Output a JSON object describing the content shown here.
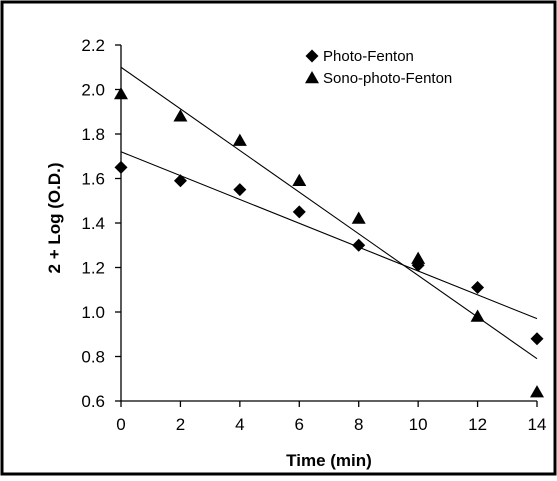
{
  "chart_data": {
    "type": "scatter",
    "title": "",
    "xlabel": "Time (min)",
    "ylabel": "2 + Log (O.D.)",
    "xlim": [
      0,
      14
    ],
    "ylim": [
      0.6,
      2.2
    ],
    "x_ticks": [
      "0",
      "2",
      "4",
      "6",
      "8",
      "10",
      "12",
      "14"
    ],
    "y_ticks": [
      "0.6",
      "0.8",
      "1.0",
      "1.2",
      "1.4",
      "1.6",
      "1.8",
      "2.0",
      "2.2"
    ],
    "grid": false,
    "legend_position": "top-right",
    "series": [
      {
        "name": "Photo-Fenton",
        "marker": "diamond",
        "x": [
          0,
          2,
          4,
          6,
          8,
          10,
          12,
          14
        ],
        "y": [
          1.65,
          1.59,
          1.55,
          1.45,
          1.3,
          1.21,
          1.11,
          0.88
        ],
        "trendline": {
          "start": [
            0,
            1.72
          ],
          "end": [
            14,
            0.97
          ]
        }
      },
      {
        "name": "Sono-photo-Fenton",
        "marker": "triangle",
        "x": [
          0,
          2,
          4,
          6,
          8,
          10,
          12,
          14
        ],
        "y": [
          1.98,
          1.88,
          1.77,
          1.59,
          1.42,
          1.24,
          0.98,
          0.64
        ],
        "trendline": {
          "start": [
            0,
            2.1
          ],
          "end": [
            14,
            0.79
          ]
        }
      }
    ]
  }
}
